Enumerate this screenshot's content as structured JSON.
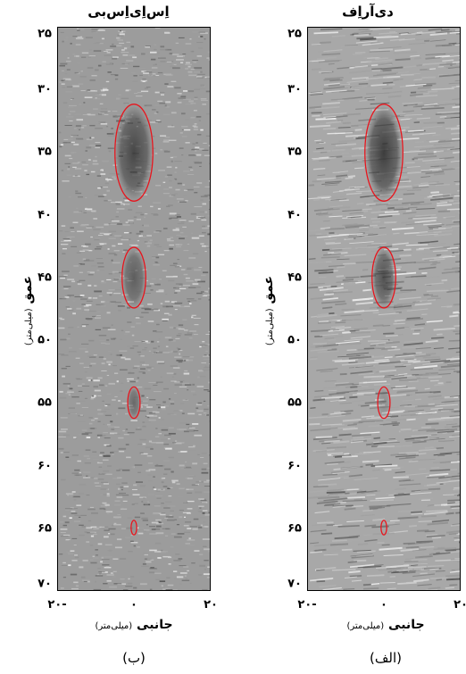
{
  "panels": [
    {
      "id": "b",
      "title": "اِس‌اِی‌اِس‌بی",
      "caption": "(ب)",
      "ylabel_main": "عمق",
      "ylabel_unit": "(میلی‌متر)",
      "xlabel_main": "جانبی",
      "xlabel_unit": "(میلی‌متر)",
      "yticks": [
        "۲۵",
        "۳۰",
        "۳۵",
        "۴۰",
        "۴۵",
        "۵۰",
        "۵۵",
        "۶۰",
        "۶۵",
        "۷۰"
      ],
      "xticks": [
        "۲۰-",
        "۰",
        "۲۰"
      ],
      "cysts": [
        {
          "depth": 35,
          "radius_mm": 4.0,
          "darkness": 0.75
        },
        {
          "depth": 45,
          "radius_mm": 2.5,
          "darkness": 0.55
        },
        {
          "depth": 55,
          "radius_mm": 1.3,
          "darkness": 0.45
        },
        {
          "depth": 65,
          "radius_mm": 0.6,
          "darkness": 0.1
        }
      ]
    },
    {
      "id": "a",
      "title": "دی‌آراِف",
      "caption": "(الف)",
      "ylabel_main": "عمق",
      "ylabel_unit": "(میلی‌متر)",
      "xlabel_main": "جانبی",
      "xlabel_unit": "(میلی‌متر)",
      "yticks": [
        "۲۵",
        "۳۰",
        "۳۵",
        "۴۰",
        "۴۵",
        "۵۰",
        "۵۵",
        "۶۰",
        "۶۵",
        "۷۰"
      ],
      "xticks": [
        "۲۰-",
        "۰",
        "۲۰"
      ],
      "cysts": [
        {
          "depth": 35,
          "radius_mm": 4.0,
          "darkness": 0.85
        },
        {
          "depth": 45,
          "radius_mm": 2.5,
          "darkness": 0.7
        },
        {
          "depth": 55,
          "radius_mm": 1.3,
          "darkness": 0.2
        },
        {
          "depth": 65,
          "radius_mm": 0.6,
          "darkness": 0.05
        }
      ]
    }
  ],
  "axis": {
    "depth_min": 25,
    "depth_max": 70,
    "lateral_min": -20,
    "lateral_max": 20
  },
  "colors": {
    "cyst_outline": "#e8141c"
  }
}
